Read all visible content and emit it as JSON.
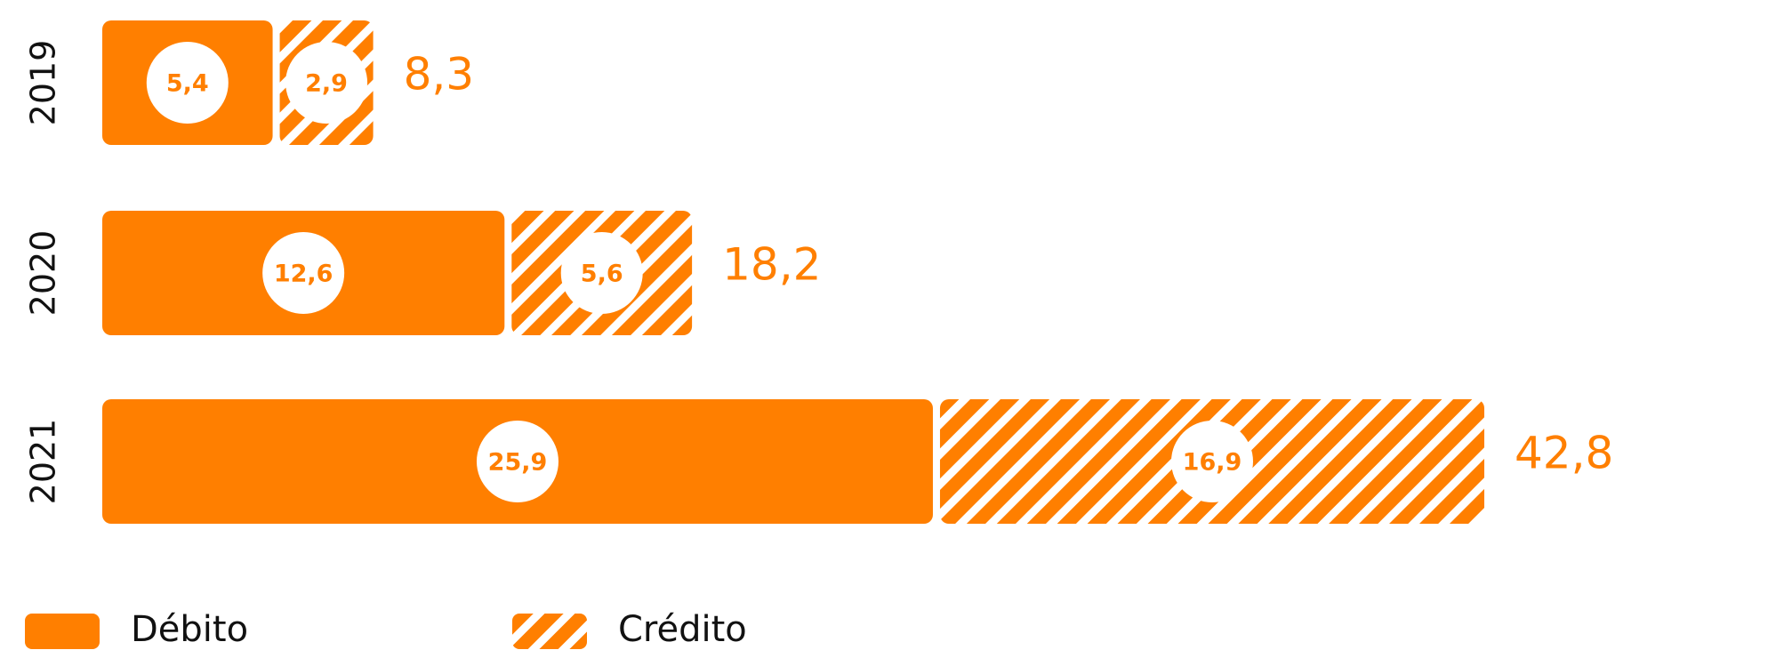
{
  "chart_data": {
    "type": "stacked-bar-horizontal",
    "categories": [
      "2019",
      "2020",
      "2021"
    ],
    "series": [
      {
        "name": "Débito",
        "color": "#ff7f00",
        "values": [
          5.4,
          12.6,
          25.9
        ],
        "value_labels": [
          "5,4",
          "12,6",
          "25,9"
        ]
      },
      {
        "name": "Crédito",
        "color": "#ff7f00",
        "hatch": true,
        "values": [
          2.9,
          5.6,
          16.9
        ],
        "value_labels": [
          "2,9",
          "5,6",
          "16,9"
        ]
      }
    ],
    "totals": [
      8.3,
      18.2,
      42.8
    ],
    "total_labels": [
      "8,3",
      "18,2",
      "42,8"
    ]
  }
}
